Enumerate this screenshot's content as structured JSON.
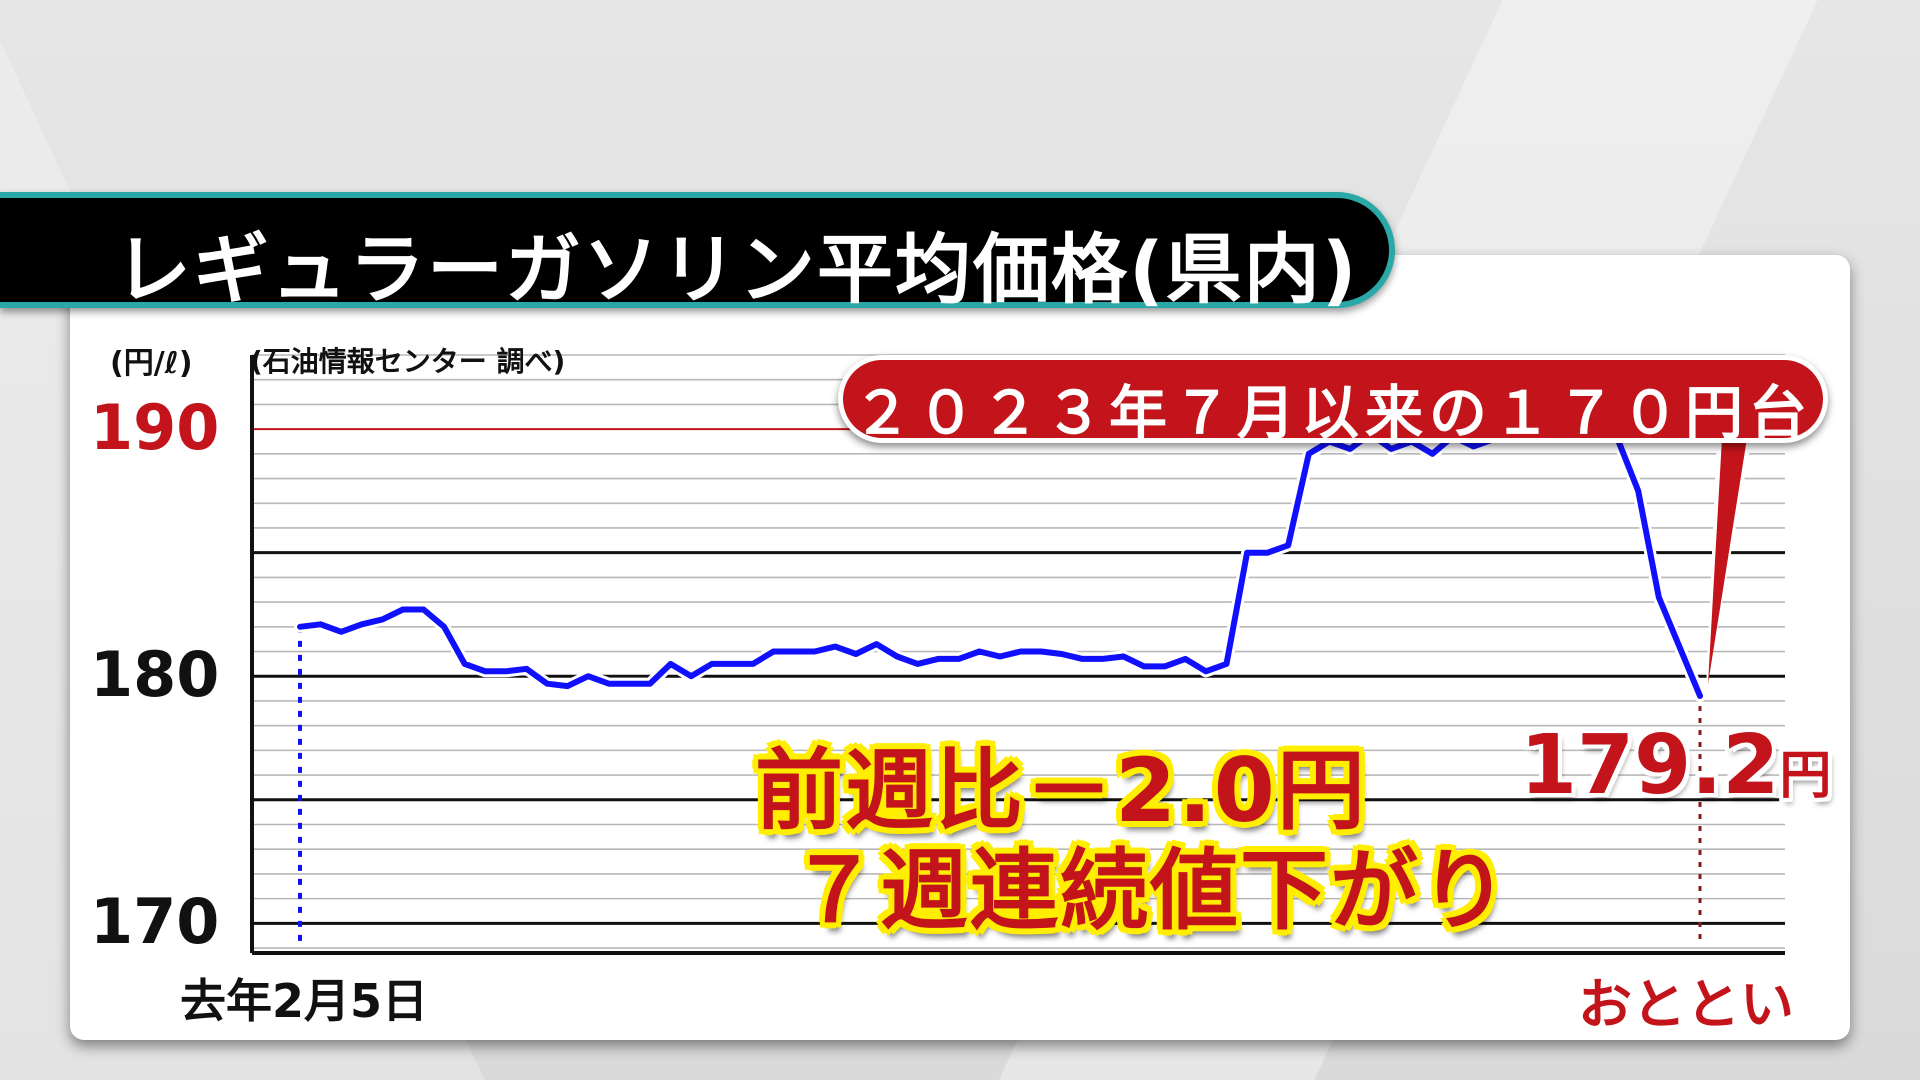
{
  "title": "レギュラーガソリン平均価格(県内)",
  "unit_label": "(円/ℓ)",
  "source_label": "(石油情報センター 調べ)",
  "callout": "２０２３年７月以来の１７０円台",
  "last_value": "179.2",
  "last_value_unit": "円",
  "note_line1": "前週比－2.0円",
  "note_line2": "７週連続値下がり",
  "colors": {
    "line": "#1010ff",
    "accent_red": "#c2141a",
    "note_outline": "#ffee00",
    "title_border": "#2aa8a8"
  },
  "chart_data": {
    "type": "line",
    "title": "レギュラーガソリン平均価格(県内)",
    "ylabel": "(円/ℓ)",
    "ylim": [
      168.8,
      193
    ],
    "y_ticks": [
      {
        "value": 190,
        "label": "190",
        "color": "#c2141a"
      },
      {
        "value": 180,
        "label": "180",
        "color": "#111111"
      },
      {
        "value": 170,
        "label": "170",
        "color": "#111111"
      }
    ],
    "x_start_label": "去年2月5日",
    "x_end_label": "おととい",
    "series": [
      {
        "values": [
          182.0,
          182.1,
          181.8,
          182.1,
          182.3,
          182.7,
          182.7,
          182.0,
          180.5,
          180.2,
          180.2,
          180.3,
          179.7,
          179.6,
          180.0,
          179.7,
          179.7,
          179.7,
          180.5,
          180.0,
          180.5,
          180.5,
          180.5,
          181.0,
          181.0,
          181.0,
          181.2,
          180.9,
          181.3,
          180.8,
          180.5,
          180.7,
          180.7,
          181.0,
          180.8,
          181.0,
          181.0,
          180.9,
          180.7,
          180.7,
          180.8,
          180.4,
          180.4,
          180.7,
          180.2,
          180.5,
          185.0,
          185.0,
          185.3,
          189.0,
          189.5,
          189.2,
          189.8,
          189.2,
          189.5,
          189.0,
          189.7,
          189.3,
          189.6,
          189.6,
          190.4,
          190.5,
          190.2,
          189.8,
          189.6,
          187.5,
          183.2,
          181.2,
          179.2
        ]
      }
    ]
  }
}
